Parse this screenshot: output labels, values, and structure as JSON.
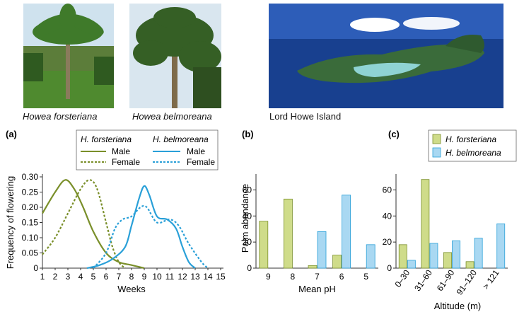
{
  "photos": [
    {
      "caption": "Howea forsteriana"
    },
    {
      "caption": "Howea belmoreana"
    },
    {
      "caption": "Lord Howe Island"
    }
  ],
  "colors": {
    "forsteriana": "#7a8f2a",
    "belmoreana": "#2aa0d8",
    "forsteriana_fill": "#cfdc8a",
    "belmoreana_fill": "#a9d8f2"
  },
  "legend_a": {
    "forsteriana_title": "H. forsteriana",
    "belmoreana_title": "H. belmoreana",
    "male": "Male",
    "female": "Female"
  },
  "legend_c": {
    "forsteriana": "H. forsteriana",
    "belmoreana": "H. belmoreana"
  },
  "chart_data": [
    {
      "panel": "(a)",
      "type": "line",
      "xlabel": "Weeks",
      "ylabel": "Frequency of flowering",
      "xlim": [
        1,
        15
      ],
      "ylim": [
        0,
        0.3
      ],
      "xticks": [
        "1",
        "2",
        "3",
        "4",
        "5",
        "6",
        "7",
        "8",
        "9",
        "10",
        "11",
        "12",
        "13",
        "14",
        "15"
      ],
      "yticks": [
        "0",
        "0.05",
        "0.10",
        "0.15",
        "0.20",
        "0.25",
        "0.30"
      ],
      "series": [
        {
          "name": "H. forsteriana Male",
          "style": "solid",
          "color": "#7a8f2a",
          "points": [
            [
              1,
              0.18
            ],
            [
              2,
              0.25
            ],
            [
              2.8,
              0.29
            ],
            [
              3.5,
              0.26
            ],
            [
              4.2,
              0.2
            ],
            [
              5,
              0.12
            ],
            [
              6,
              0.05
            ],
            [
              7,
              0.02
            ],
            [
              8,
              0.01
            ],
            [
              9,
              0.0
            ]
          ]
        },
        {
          "name": "H. forsteriana Female",
          "style": "dashed",
          "color": "#7a8f2a",
          "points": [
            [
              1,
              0.045
            ],
            [
              2,
              0.1
            ],
            [
              3,
              0.18
            ],
            [
              4,
              0.26
            ],
            [
              4.7,
              0.29
            ],
            [
              5.3,
              0.26
            ],
            [
              6,
              0.15
            ],
            [
              6.5,
              0.07
            ],
            [
              7,
              0.02
            ],
            [
              7.5,
              0.0
            ]
          ]
        },
        {
          "name": "H. belmoreana Male",
          "style": "solid",
          "color": "#2aa0d8",
          "points": [
            [
              4.5,
              0.0
            ],
            [
              5.5,
              0.01
            ],
            [
              6.5,
              0.03
            ],
            [
              7.5,
              0.07
            ],
            [
              8,
              0.14
            ],
            [
              8.6,
              0.23
            ],
            [
              9,
              0.27
            ],
            [
              9.4,
              0.24
            ],
            [
              10,
              0.17
            ],
            [
              10.8,
              0.16
            ],
            [
              11.5,
              0.13
            ],
            [
              12,
              0.07
            ],
            [
              12.5,
              0.02
            ],
            [
              13,
              0.0
            ]
          ]
        },
        {
          "name": "H. belmoreana Female",
          "style": "dashed",
          "color": "#2aa0d8",
          "points": [
            [
              5,
              0.0
            ],
            [
              6,
              0.05
            ],
            [
              6.7,
              0.13
            ],
            [
              7.3,
              0.16
            ],
            [
              8,
              0.17
            ],
            [
              8.7,
              0.2
            ],
            [
              9.2,
              0.2
            ],
            [
              10,
              0.15
            ],
            [
              11,
              0.16
            ],
            [
              11.7,
              0.14
            ],
            [
              12.5,
              0.08
            ],
            [
              13.5,
              0.02
            ],
            [
              14,
              0.0
            ]
          ]
        }
      ]
    },
    {
      "panel": "(b)",
      "type": "bar",
      "xlabel": "Mean pH",
      "ylabel": "Palm abundance",
      "ylim": [
        0,
        70
      ],
      "yticks": [
        "0",
        "20",
        "40",
        "60"
      ],
      "categories": [
        "9",
        "8",
        "7",
        "6",
        "5"
      ],
      "series": [
        {
          "name": "H. forsteriana",
          "values": [
            36,
            53,
            2,
            10,
            0
          ]
        },
        {
          "name": "H. belmoreana",
          "values": [
            0,
            0,
            28,
            56,
            18
          ]
        }
      ]
    },
    {
      "panel": "(c)",
      "type": "bar",
      "xlabel": "Altitude (m)",
      "ylabel": "",
      "ylim": [
        0,
        70
      ],
      "yticks": [
        "0",
        "20",
        "40",
        "60"
      ],
      "categories": [
        "0–30",
        "31–60",
        "61–90",
        "91–120",
        "> 121"
      ],
      "series": [
        {
          "name": "H. forsteriana",
          "values": [
            18,
            68,
            12,
            5,
            0
          ]
        },
        {
          "name": "H. belmoreana",
          "values": [
            6,
            19,
            21,
            23,
            34
          ]
        }
      ]
    }
  ]
}
